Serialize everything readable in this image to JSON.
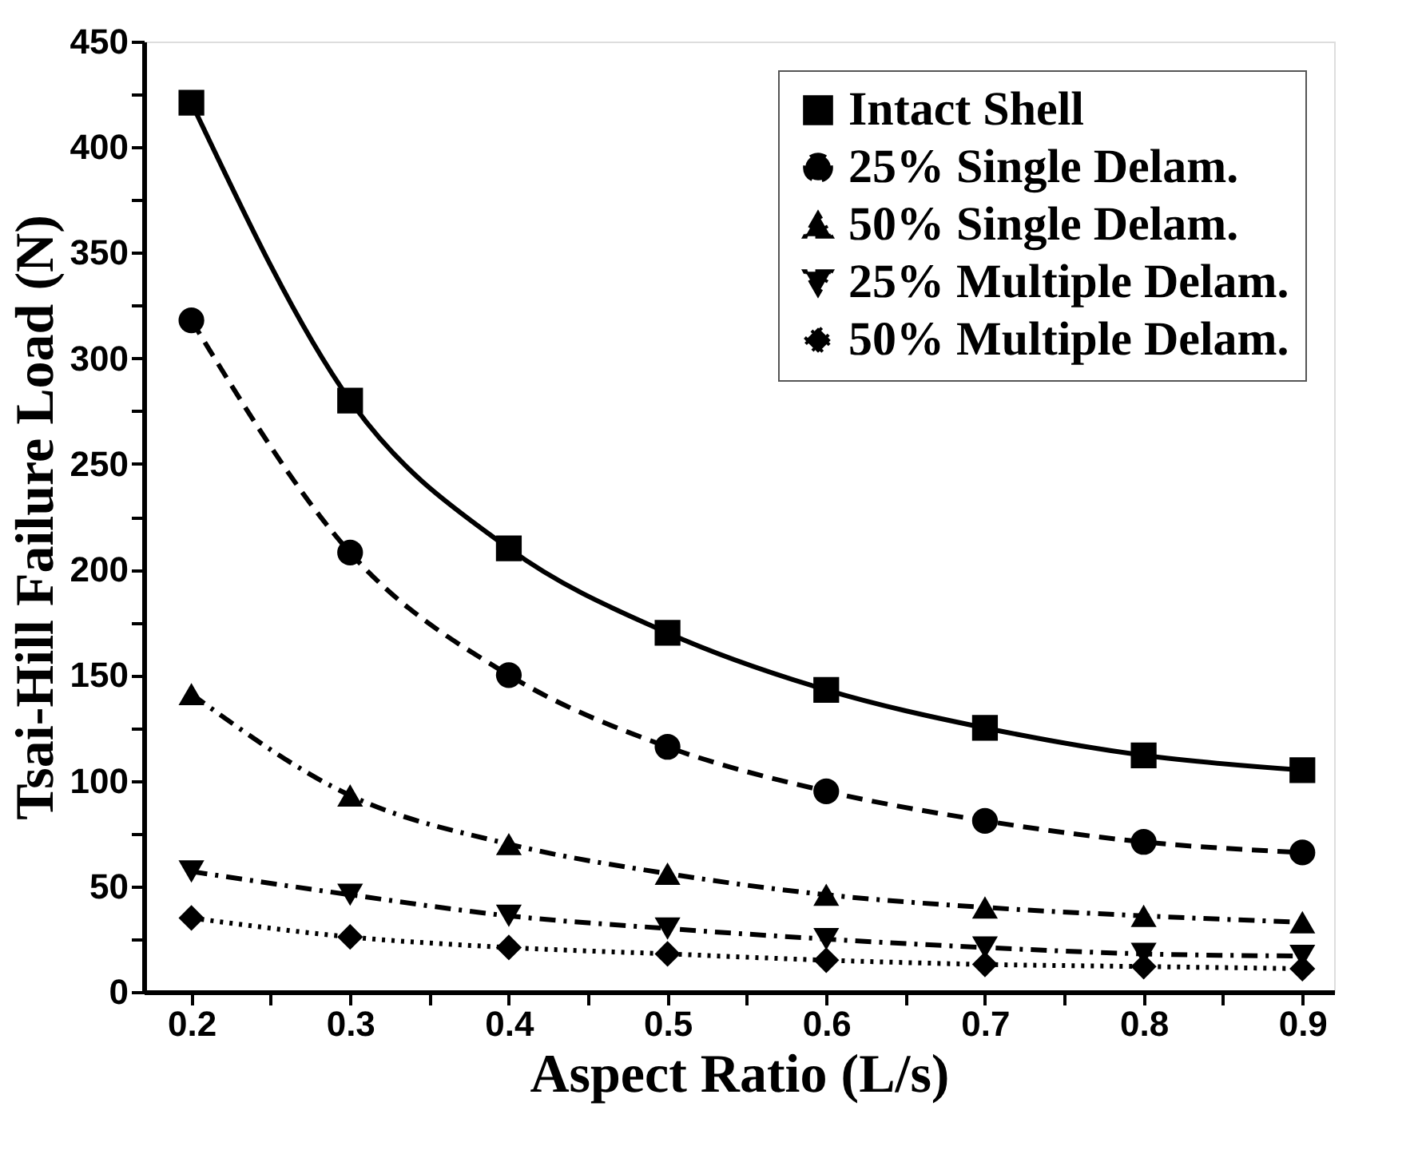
{
  "chart_data": {
    "type": "line",
    "xlabel": "Aspect Ratio (L/s)",
    "ylabel": "Tsai-Hill Failure Load (N)",
    "x": [
      0.2,
      0.3,
      0.4,
      0.5,
      0.6,
      0.7,
      0.8,
      0.9
    ],
    "xlim": [
      0.17,
      0.92
    ],
    "xticks": [
      0.2,
      {
        "value": 0.25,
        "label": null
      },
      0.3,
      {
        "value": 0.35,
        "label": null
      },
      0.4,
      {
        "value": 0.45,
        "label": null
      },
      0.5,
      {
        "value": 0.55,
        "label": null
      },
      0.6,
      {
        "value": 0.65,
        "label": null
      },
      0.7,
      {
        "value": 0.75,
        "label": null
      },
      0.8,
      {
        "value": 0.85,
        "label": null
      },
      0.9
    ],
    "ylim": [
      0,
      450
    ],
    "yticks": [
      0,
      {
        "value": 25,
        "label": null
      },
      50,
      {
        "value": 75,
        "label": null
      },
      100,
      {
        "value": 125,
        "label": null
      },
      150,
      {
        "value": 175,
        "label": null
      },
      200,
      {
        "value": 225,
        "label": null
      },
      250,
      {
        "value": 275,
        "label": null
      },
      300,
      {
        "value": 325,
        "label": null
      },
      350,
      {
        "value": 375,
        "label": null
      },
      400,
      {
        "value": 425,
        "label": null
      },
      450
    ],
    "grid": false,
    "legend": "top right",
    "series": [
      {
        "name": "Intact Shell",
        "color": "#000000",
        "marker": "square",
        "line_style": "solid",
        "values": [
          421,
          280,
          210,
          170,
          143,
          125,
          112,
          105
        ]
      },
      {
        "name": "25% Single Delam.",
        "color": "#000000",
        "marker": "circle",
        "line_style": "dashed",
        "values": [
          318,
          208,
          150,
          116,
          95,
          81,
          71,
          66
        ]
      },
      {
        "name": "50% Single Delam.",
        "color": "#000000",
        "marker": "triangle",
        "line_style": "dashdot",
        "values": [
          141,
          93,
          70,
          56,
          46,
          40,
          36,
          33
        ]
      },
      {
        "name": "25% Multiple Delam.",
        "color": "#000000",
        "marker": "triangle-down",
        "line_style": "dashdot",
        "values": [
          57,
          46,
          36,
          30,
          25,
          21,
          18,
          17
        ]
      },
      {
        "name": "50% Multiple Delam.",
        "color": "#000000",
        "marker": "diamond",
        "line_style": "dotted",
        "values": [
          35,
          26,
          21,
          18,
          15,
          13,
          12,
          11
        ]
      }
    ]
  }
}
